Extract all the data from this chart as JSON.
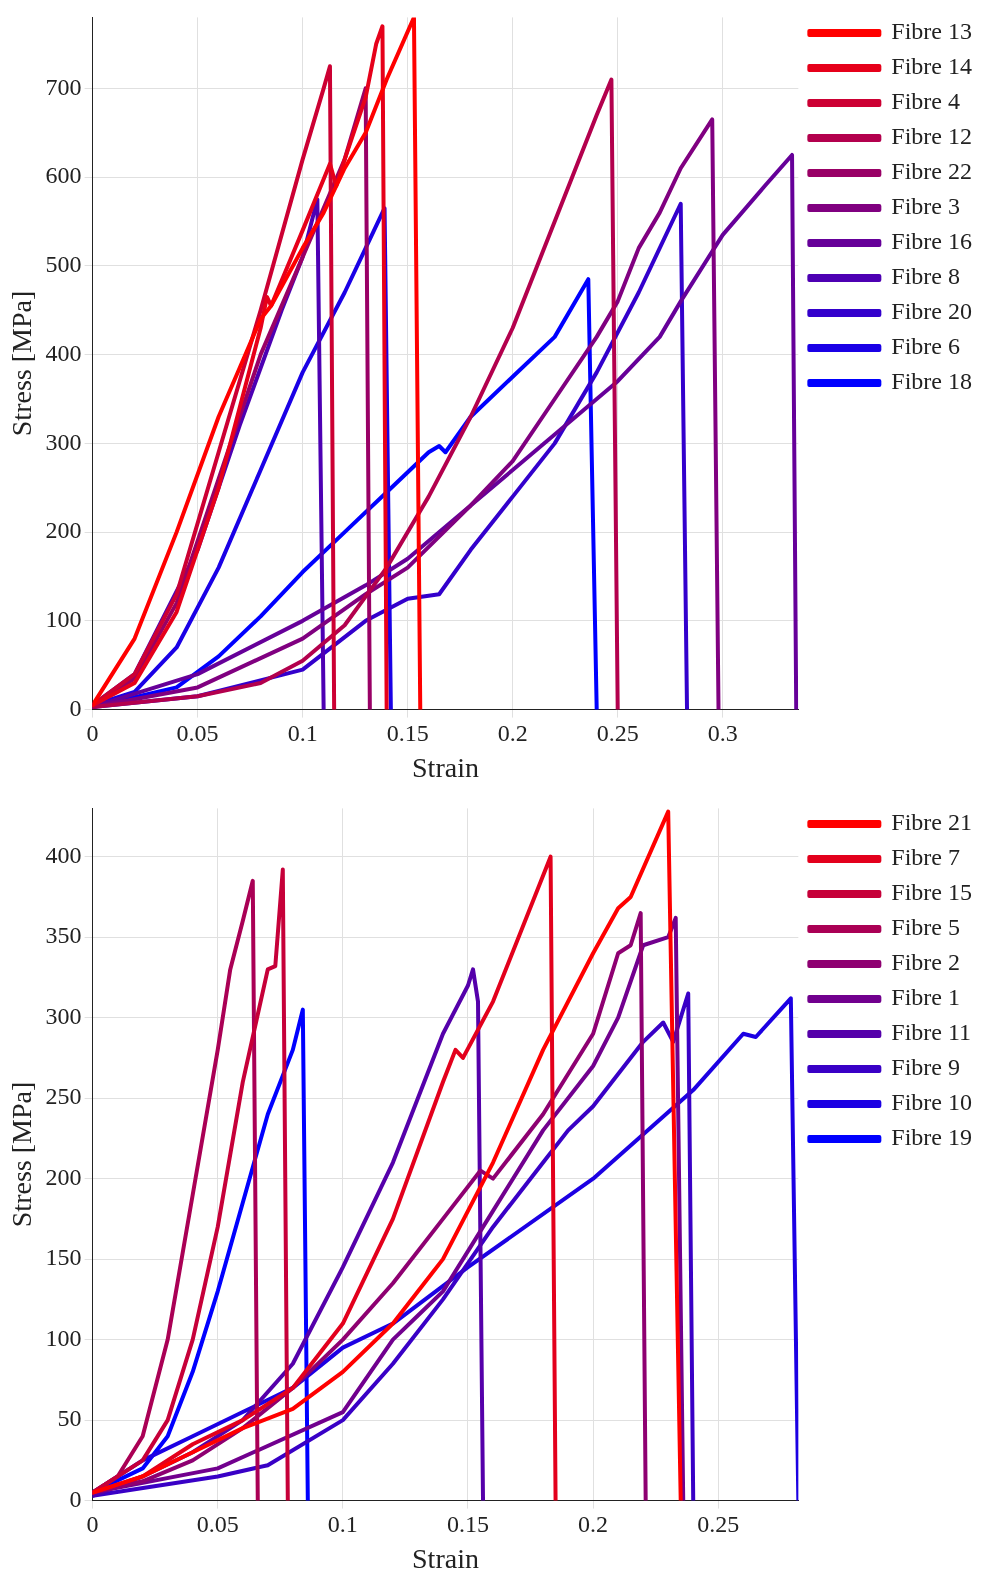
{
  "chart_data": [
    {
      "type": "line",
      "xlabel": "Strain",
      "ylabel": "Stress [MPa]",
      "xlim": [
        0,
        0.336
      ],
      "ylim": [
        0,
        780
      ],
      "xticks": [
        0,
        0.05,
        0.1,
        0.15,
        0.2,
        0.25,
        0.3
      ],
      "yticks": [
        0,
        100,
        200,
        300,
        400,
        500,
        600,
        700
      ],
      "grid": true,
      "legend": "right",
      "line_style": "solid",
      "marker": "none",
      "series": [
        {
          "name": "Fibre 13",
          "color": "#ff0000",
          "x": [
            0,
            0.02,
            0.04,
            0.06,
            0.07,
            0.08,
            0.085,
            0.1,
            0.11,
            0.12,
            0.13,
            0.14,
            0.153,
            0.156
          ],
          "values": [
            5,
            80,
            200,
            330,
            385,
            440,
            455,
            520,
            560,
            610,
            650,
            710,
            780,
            0
          ]
        },
        {
          "name": "Fibre 14",
          "color": "#e6001a",
          "x": [
            0,
            0.02,
            0.04,
            0.06,
            0.08,
            0.083,
            0.085,
            0.1,
            0.113,
            0.116,
            0.12,
            0.13,
            0.135,
            0.138,
            0.14
          ],
          "values": [
            5,
            30,
            110,
            250,
            430,
            465,
            455,
            540,
            615,
            590,
            620,
            690,
            750,
            770,
            0
          ]
        },
        {
          "name": "Fibre 4",
          "color": "#cc0033",
          "x": [
            0,
            0.02,
            0.04,
            0.06,
            0.08,
            0.1,
            0.11,
            0.113,
            0.115
          ],
          "values": [
            5,
            40,
            130,
            290,
            450,
            620,
            700,
            725,
            0
          ]
        },
        {
          "name": "Fibre 12",
          "color": "#b3004d",
          "x": [
            0,
            0.05,
            0.08,
            0.1,
            0.12,
            0.14,
            0.16,
            0.18,
            0.2,
            0.22,
            0.24,
            0.247,
            0.25
          ],
          "values": [
            3,
            15,
            30,
            55,
            95,
            160,
            240,
            330,
            430,
            550,
            670,
            710,
            0
          ]
        },
        {
          "name": "Fibre 22",
          "color": "#990066",
          "x": [
            0,
            0.02,
            0.04,
            0.06,
            0.08,
            0.1,
            0.12,
            0.13,
            0.132
          ],
          "values": [
            5,
            35,
            120,
            260,
            400,
            510,
            620,
            700,
            0
          ]
        },
        {
          "name": "Fibre 3",
          "color": "#800080",
          "x": [
            0,
            0.05,
            0.1,
            0.13,
            0.15,
            0.18,
            0.2,
            0.22,
            0.24,
            0.25,
            0.26,
            0.27,
            0.28,
            0.295,
            0.298
          ],
          "values": [
            3,
            25,
            80,
            130,
            160,
            230,
            280,
            350,
            420,
            460,
            520,
            560,
            610,
            665,
            0
          ]
        },
        {
          "name": "Fibre 16",
          "color": "#660099",
          "x": [
            0,
            0.05,
            0.1,
            0.13,
            0.15,
            0.18,
            0.2,
            0.22,
            0.25,
            0.27,
            0.28,
            0.3,
            0.32,
            0.333,
            0.335
          ],
          "values": [
            3,
            40,
            100,
            140,
            170,
            230,
            270,
            310,
            370,
            420,
            460,
            535,
            590,
            625,
            0
          ]
        },
        {
          "name": "Fibre 8",
          "color": "#4d00b3",
          "x": [
            0,
            0.02,
            0.035,
            0.05,
            0.07,
            0.09,
            0.1,
            0.107,
            0.11
          ],
          "values": [
            5,
            40,
            110,
            180,
            320,
            450,
            510,
            575,
            0
          ]
        },
        {
          "name": "Fibre 20",
          "color": "#3300cc",
          "x": [
            0,
            0.05,
            0.1,
            0.13,
            0.15,
            0.165,
            0.18,
            0.2,
            0.22,
            0.24,
            0.26,
            0.28,
            0.283
          ],
          "values": [
            3,
            15,
            45,
            100,
            125,
            130,
            180,
            240,
            300,
            380,
            470,
            570,
            0
          ]
        },
        {
          "name": "Fibre 6",
          "color": "#1a00e6",
          "x": [
            0,
            0.02,
            0.04,
            0.06,
            0.08,
            0.1,
            0.12,
            0.139,
            0.142
          ],
          "values": [
            5,
            20,
            70,
            160,
            270,
            380,
            470,
            565,
            0
          ]
        },
        {
          "name": "Fibre 18",
          "color": "#0000ff",
          "x": [
            0,
            0.04,
            0.06,
            0.08,
            0.1,
            0.12,
            0.14,
            0.16,
            0.165,
            0.168,
            0.18,
            0.2,
            0.22,
            0.236,
            0.24
          ],
          "values": [
            3,
            25,
            60,
            105,
            155,
            200,
            245,
            290,
            297,
            290,
            330,
            375,
            420,
            485,
            0
          ]
        }
      ]
    },
    {
      "type": "line",
      "xlabel": "Strain",
      "ylabel": "Stress [MPa]",
      "xlim": [
        0,
        0.282
      ],
      "ylim": [
        0,
        430
      ],
      "xticks": [
        0,
        0.05,
        0.1,
        0.15,
        0.2,
        0.25
      ],
      "yticks": [
        0,
        50,
        100,
        150,
        200,
        250,
        300,
        350,
        400
      ],
      "grid": true,
      "legend": "right",
      "line_style": "solid",
      "marker": "none",
      "series": [
        {
          "name": "Fibre 21",
          "color": "#ff0000",
          "x": [
            0,
            0.02,
            0.04,
            0.06,
            0.08,
            0.1,
            0.12,
            0.14,
            0.16,
            0.18,
            0.2,
            0.21,
            0.215,
            0.23,
            0.235
          ],
          "values": [
            5,
            15,
            30,
            45,
            57,
            80,
            110,
            150,
            210,
            280,
            340,
            368,
            375,
            428,
            0
          ]
        },
        {
          "name": "Fibre 7",
          "color": "#e3001c",
          "x": [
            0,
            0.02,
            0.04,
            0.06,
            0.08,
            0.1,
            0.12,
            0.14,
            0.145,
            0.148,
            0.16,
            0.183,
            0.185
          ],
          "values": [
            5,
            15,
            35,
            50,
            70,
            110,
            175,
            260,
            280,
            275,
            310,
            400,
            0
          ]
        },
        {
          "name": "Fibre 15",
          "color": "#c60039",
          "x": [
            0,
            0.02,
            0.03,
            0.04,
            0.05,
            0.06,
            0.07,
            0.073,
            0.076,
            0.078
          ],
          "values": [
            5,
            25,
            50,
            100,
            170,
            260,
            330,
            332,
            392,
            0
          ]
        },
        {
          "name": "Fibre 5",
          "color": "#aa0055",
          "x": [
            0,
            0.01,
            0.02,
            0.03,
            0.04,
            0.05,
            0.055,
            0.06,
            0.064,
            0.066
          ],
          "values": [
            5,
            15,
            40,
            100,
            190,
            280,
            330,
            360,
            385,
            0
          ]
        },
        {
          "name": "Fibre 2",
          "color": "#8e0071",
          "x": [
            0,
            0.02,
            0.04,
            0.06,
            0.08,
            0.1,
            0.12,
            0.14,
            0.155,
            0.16,
            0.18,
            0.2,
            0.21,
            0.215,
            0.219,
            0.221
          ],
          "values": [
            5,
            12,
            25,
            45,
            70,
            100,
            135,
            175,
            205,
            200,
            240,
            290,
            340,
            345,
            365,
            0
          ]
        },
        {
          "name": "Fibre 1",
          "color": "#71008e",
          "x": [
            0,
            0.05,
            0.1,
            0.12,
            0.13,
            0.14,
            0.16,
            0.18,
            0.2,
            0.21,
            0.22,
            0.23,
            0.233,
            0.236
          ],
          "values": [
            5,
            20,
            55,
            100,
            115,
            130,
            180,
            230,
            270,
            300,
            345,
            350,
            362,
            0
          ]
        },
        {
          "name": "Fibre 11",
          "color": "#5500aa",
          "x": [
            0,
            0.02,
            0.04,
            0.06,
            0.08,
            0.1,
            0.12,
            0.14,
            0.15,
            0.152,
            0.154,
            0.156
          ],
          "values": [
            3,
            15,
            30,
            50,
            85,
            145,
            210,
            290,
            320,
            330,
            310,
            0
          ]
        },
        {
          "name": "Fibre 9",
          "color": "#3900c6",
          "x": [
            0,
            0.05,
            0.07,
            0.1,
            0.12,
            0.14,
            0.16,
            0.18,
            0.19,
            0.2,
            0.22,
            0.228,
            0.232,
            0.238,
            0.24
          ],
          "values": [
            3,
            15,
            22,
            50,
            85,
            125,
            170,
            210,
            230,
            245,
            285,
            297,
            285,
            315,
            0
          ]
        },
        {
          "name": "Fibre 10",
          "color": "#1c00e3",
          "x": [
            0,
            0.02,
            0.04,
            0.06,
            0.08,
            0.1,
            0.12,
            0.15,
            0.2,
            0.24,
            0.26,
            0.265,
            0.279,
            0.282
          ],
          "values": [
            5,
            25,
            40,
            55,
            70,
            95,
            110,
            145,
            200,
            255,
            290,
            288,
            312,
            0
          ]
        },
        {
          "name": "Fibre 19",
          "color": "#0000ff",
          "x": [
            0,
            0.02,
            0.03,
            0.04,
            0.05,
            0.06,
            0.07,
            0.08,
            0.084,
            0.086
          ],
          "values": [
            5,
            20,
            40,
            80,
            130,
            185,
            240,
            280,
            305,
            0
          ]
        }
      ]
    }
  ]
}
